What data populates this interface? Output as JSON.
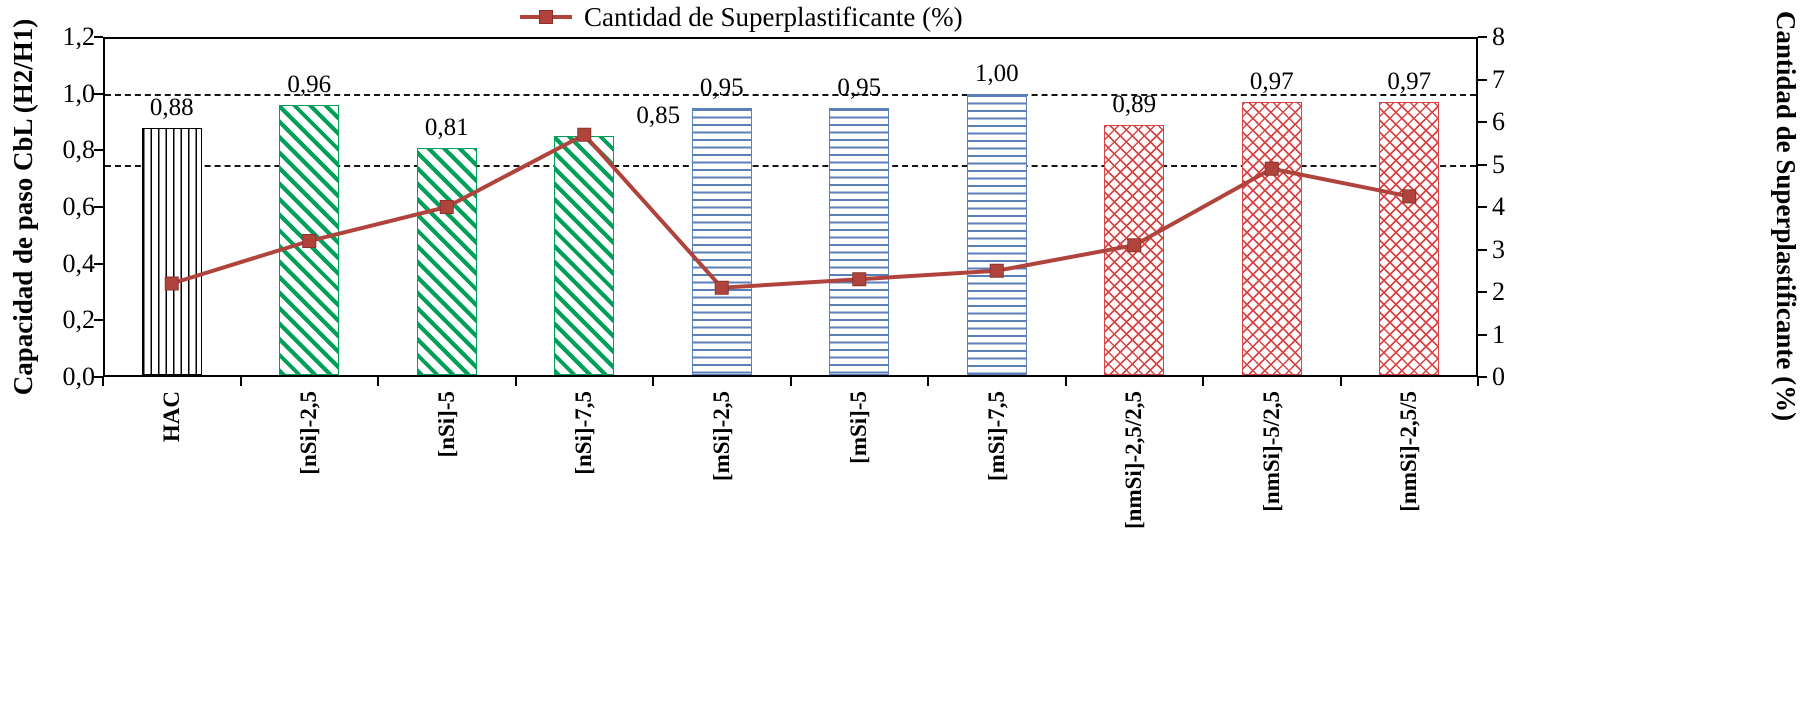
{
  "legend": {
    "label": "Cantidad de Superplastificante (%)"
  },
  "chart_data": {
    "type": "bar+line",
    "categories": [
      "HAC",
      "[nSi]-2,5",
      "[nSi]-5",
      "[nSi]-7,5",
      "[mSi]-2,5",
      "[mSi]-5",
      "[mSi]-7,5",
      "[nmSi]-2,5/2,5",
      "[nmSi]-5/2,5",
      "[nmSi]-2,5/5"
    ],
    "series": [
      {
        "name": "Capacidad de paso CbL (H2/H1)",
        "type": "bar",
        "axis": "left",
        "values": [
          0.88,
          0.96,
          0.81,
          0.85,
          0.95,
          0.95,
          1.0,
          0.89,
          0.97,
          0.97
        ],
        "labels": [
          "0,88",
          "0,96",
          "0,81",
          "0,85",
          "0,95",
          "0,95",
          "1,00",
          "0,89",
          "0,97",
          "0,97"
        ]
      },
      {
        "name": "Cantidad de Superplastificante (%)",
        "type": "line",
        "axis": "right",
        "color": "#B0443C",
        "marker": "square",
        "values": [
          2.2,
          3.2,
          4.0,
          5.7,
          2.1,
          2.3,
          2.5,
          3.1,
          4.9,
          4.25
        ]
      }
    ],
    "left_axis": {
      "title": "Capacidad de paso CbL (H2/H1)",
      "min": 0,
      "max": 1.2,
      "ticks": [
        "1,2",
        "1,0",
        "0,8",
        "0,6",
        "0,4",
        "0,2",
        "0,0"
      ]
    },
    "right_axis": {
      "title": "Cantidad de Superplastificante (%)",
      "min": 0,
      "max": 8,
      "ticks": [
        "8",
        "7",
        "6",
        "5",
        "4",
        "3",
        "2",
        "1",
        "0"
      ]
    },
    "reference_lines": [
      {
        "axis": "left",
        "value": 1.0,
        "style": "dashed",
        "color": "#151515"
      },
      {
        "axis": "left",
        "value": 0.75,
        "style": "dashed",
        "color": "#151515"
      }
    ],
    "bar_patterns": [
      "vertical",
      "diagonal",
      "diagonal",
      "diagonal",
      "horizontal",
      "horizontal",
      "horizontal",
      "cross",
      "cross",
      "cross"
    ],
    "pattern_colors": {
      "vertical": "#000000",
      "diagonal": "#00A05A",
      "horizontal": "#5B7FB9",
      "cross": "#D94545"
    },
    "grid": false,
    "legend_position": "top"
  }
}
